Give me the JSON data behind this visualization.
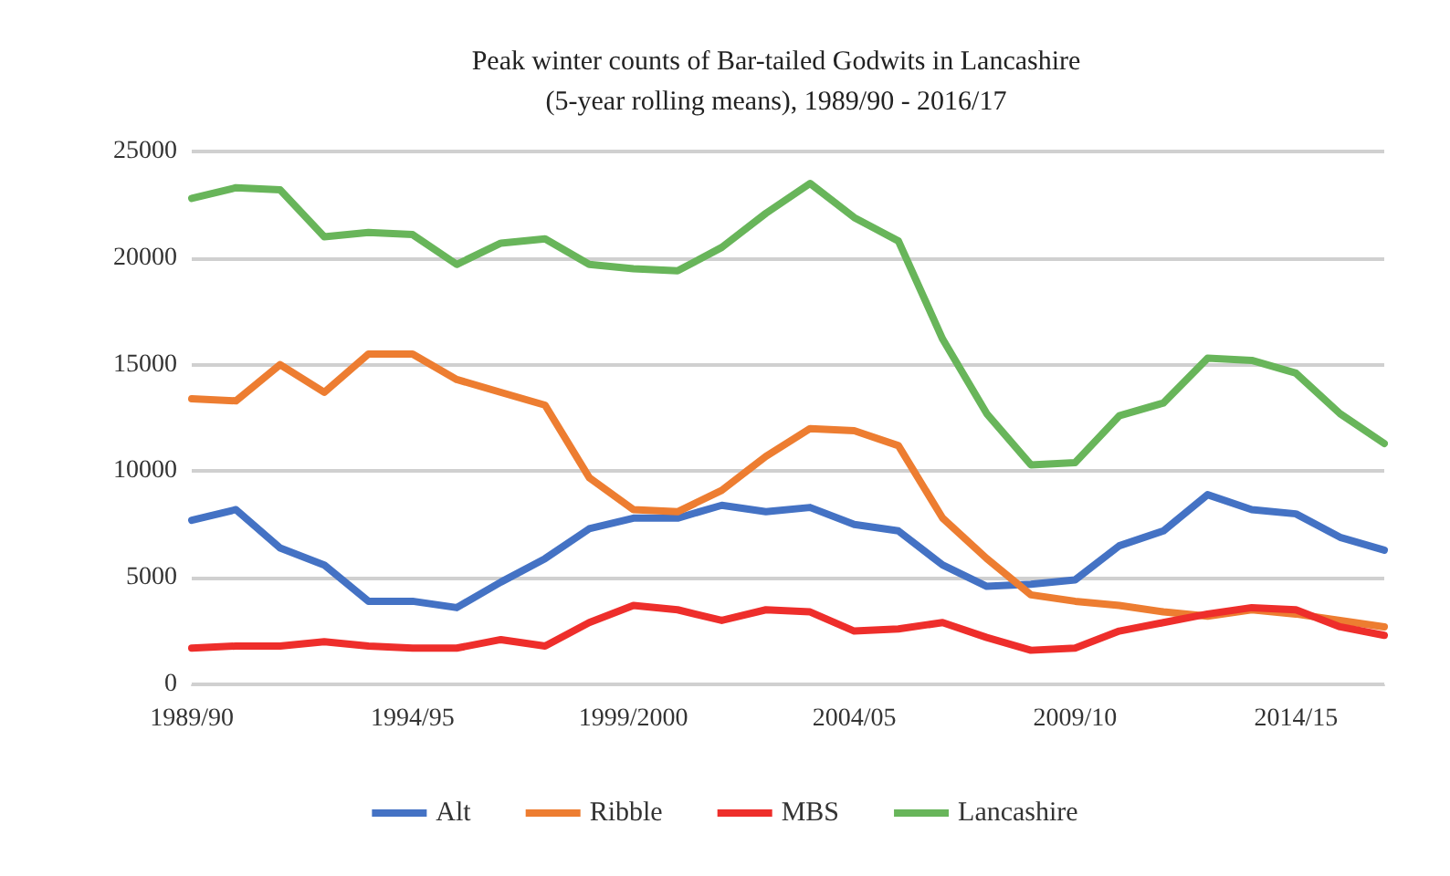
{
  "chart_data": {
    "type": "line",
    "title": "Peak winter counts of Bar-tailed Godwits in Lancashire\n(5-year rolling means), 1989/90 - 2016/17",
    "categories": [
      "1989/90",
      null,
      null,
      null,
      null,
      "1994/95",
      null,
      null,
      null,
      null,
      "1999/2000",
      null,
      null,
      null,
      null,
      "2004/05",
      null,
      null,
      null,
      null,
      "2009/10",
      null,
      null,
      null,
      null,
      "2014/15",
      null,
      null
    ],
    "series": [
      {
        "name": "Alt",
        "color": "#4472c4",
        "values": [
          7700,
          8200,
          6400,
          5600,
          3900,
          3900,
          3600,
          4800,
          5900,
          7300,
          7800,
          7800,
          8400,
          8100,
          8300,
          7500,
          7200,
          5600,
          4600,
          4700,
          4900,
          6500,
          7200,
          8900,
          8200,
          8000,
          6900,
          6300
        ]
      },
      {
        "name": "Ribble",
        "color": "#ed7d31",
        "values": [
          13400,
          13300,
          15000,
          13700,
          15500,
          15500,
          14300,
          13700,
          13100,
          9700,
          8200,
          8100,
          9100,
          10700,
          12000,
          11900,
          11200,
          7800,
          5900,
          4200,
          3900,
          3700,
          3400,
          3200,
          3500,
          3300,
          3000,
          2700
        ]
      },
      {
        "name": "MBS",
        "color": "#ee2e2b",
        "values": [
          1700,
          1800,
          1800,
          2000,
          1800,
          1700,
          1700,
          2100,
          1800,
          2900,
          3700,
          3500,
          3000,
          3500,
          3400,
          2500,
          2600,
          2900,
          2200,
          1600,
          1700,
          2500,
          2900,
          3300,
          3600,
          3500,
          2700,
          2300
        ]
      },
      {
        "name": "Lancashire",
        "color": "#68b55a",
        "values": [
          22800,
          23300,
          23200,
          21000,
          21200,
          21100,
          19700,
          20700,
          20900,
          19700,
          19500,
          19400,
          20500,
          22100,
          23500,
          21900,
          20800,
          16200,
          12700,
          10300,
          10400,
          12600,
          13200,
          15300,
          15200,
          14600,
          12700,
          11300
        ]
      }
    ],
    "ylim": [
      0,
      25000
    ],
    "yticks": [
      0,
      5000,
      10000,
      15000,
      20000,
      25000
    ],
    "grid": "y",
    "legend": "bottom",
    "marker": "none",
    "line_style": "solid"
  }
}
